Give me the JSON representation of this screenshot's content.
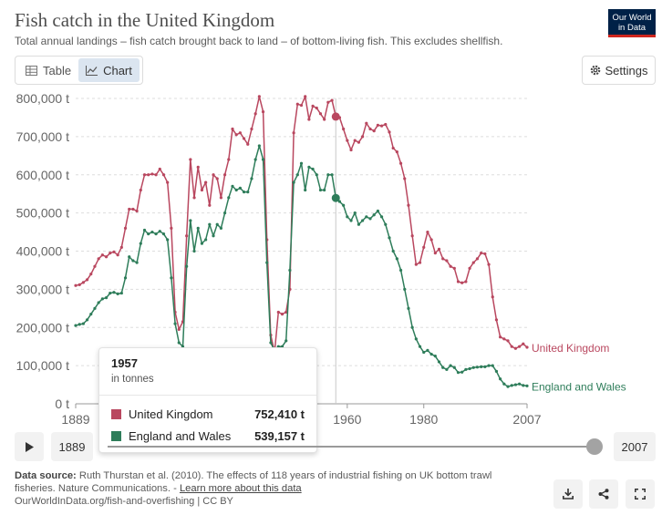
{
  "header": {
    "title": "Fish catch in the United Kingdom",
    "subtitle": "Total annual landings – fish catch brought back to land – of bottom-living fish. This excludes shellfish.",
    "logo_line1": "Our World",
    "logo_line2": "in Data"
  },
  "tabs": [
    {
      "label": "Table",
      "icon": "table-icon",
      "active": false
    },
    {
      "label": "Chart",
      "icon": "line-chart-icon",
      "active": true
    }
  ],
  "settings_label": "Settings",
  "chart_data": {
    "type": "line",
    "title": "Fish catch in the United Kingdom",
    "unit": "t",
    "x_range": [
      1889,
      2007
    ],
    "ylim": [
      0,
      800000
    ],
    "y_ticks": [
      0,
      100000,
      200000,
      300000,
      400000,
      500000,
      600000,
      700000,
      800000
    ],
    "y_tick_labels": [
      "0 t",
      "100,000 t",
      "200,000 t",
      "300,000 t",
      "400,000 t",
      "500,000 t",
      "600,000 t",
      "700,000 t",
      "800,000 t"
    ],
    "x_ticks": [
      1889,
      1960,
      1980,
      2007
    ],
    "x_tick_labels": [
      "1889",
      "1960",
      "1980",
      "2007"
    ],
    "grid": "horizontal dashed",
    "highlight_year": 1957,
    "series": [
      {
        "name": "United Kingdom",
        "color": "#b9475f",
        "x": [
          1889,
          1890,
          1891,
          1892,
          1893,
          1894,
          1895,
          1896,
          1897,
          1898,
          1899,
          1900,
          1901,
          1902,
          1903,
          1904,
          1905,
          1906,
          1907,
          1908,
          1909,
          1910,
          1911,
          1912,
          1913,
          1914,
          1915,
          1916,
          1917,
          1918,
          1919,
          1920,
          1921,
          1922,
          1923,
          1924,
          1925,
          1926,
          1927,
          1928,
          1929,
          1930,
          1931,
          1932,
          1933,
          1934,
          1935,
          1936,
          1937,
          1938,
          1939,
          1940,
          1941,
          1942,
          1943,
          1944,
          1945,
          1946,
          1947,
          1948,
          1949,
          1950,
          1951,
          1952,
          1953,
          1954,
          1955,
          1956,
          1957,
          1958,
          1959,
          1960,
          1961,
          1962,
          1963,
          1964,
          1965,
          1966,
          1967,
          1968,
          1969,
          1970,
          1971,
          1972,
          1973,
          1974,
          1975,
          1976,
          1977,
          1978,
          1979,
          1980,
          1981,
          1982,
          1983,
          1984,
          1985,
          1986,
          1987,
          1988,
          1989,
          1990,
          1991,
          1992,
          1993,
          1994,
          1995,
          1996,
          1997,
          1998,
          1999,
          2000,
          2001,
          2002,
          2003,
          2004,
          2005,
          2006,
          2007
        ],
        "values": [
          310000,
          312000,
          318000,
          325000,
          340000,
          360000,
          380000,
          390000,
          385000,
          395000,
          398000,
          390000,
          410000,
          460000,
          510000,
          510000,
          505000,
          560000,
          600000,
          600000,
          602000,
          600000,
          615000,
          600000,
          580000,
          460000,
          240000,
          195000,
          215000,
          440000,
          640000,
          540000,
          620000,
          560000,
          580000,
          520000,
          600000,
          590000,
          540000,
          600000,
          640000,
          720000,
          705000,
          710000,
          695000,
          680000,
          720000,
          760000,
          805000,
          765000,
          430000,
          180000,
          135000,
          240000,
          235000,
          240000,
          300000,
          710000,
          785000,
          782000,
          805000,
          745000,
          780000,
          775000,
          760000,
          745000,
          790000,
          795000,
          752410,
          750000,
          720000,
          690000,
          665000,
          690000,
          685000,
          700000,
          735000,
          720000,
          715000,
          730000,
          728000,
          732000,
          712000,
          670000,
          660000,
          630000,
          590000,
          520000,
          440000,
          365000,
          370000,
          410000,
          450000,
          430000,
          395000,
          405000,
          380000,
          375000,
          360000,
          355000,
          320000,
          317000,
          320000,
          355000,
          370000,
          380000,
          395000,
          393000,
          365000,
          280000,
          220000,
          175000,
          170000,
          165000,
          150000,
          145000,
          150000,
          157000,
          148000
        ]
      },
      {
        "name": "England and Wales",
        "color": "#2e7d5a",
        "x": [
          1889,
          1890,
          1891,
          1892,
          1893,
          1894,
          1895,
          1896,
          1897,
          1898,
          1899,
          1900,
          1901,
          1902,
          1903,
          1904,
          1905,
          1906,
          1907,
          1908,
          1909,
          1910,
          1911,
          1912,
          1913,
          1914,
          1915,
          1916,
          1917,
          1918,
          1919,
          1920,
          1921,
          1922,
          1923,
          1924,
          1925,
          1926,
          1927,
          1928,
          1929,
          1930,
          1931,
          1932,
          1933,
          1934,
          1935,
          1936,
          1937,
          1938,
          1939,
          1940,
          1941,
          1942,
          1943,
          1944,
          1945,
          1946,
          1947,
          1948,
          1949,
          1950,
          1951,
          1952,
          1953,
          1954,
          1955,
          1956,
          1957,
          1958,
          1959,
          1960,
          1961,
          1962,
          1963,
          1964,
          1965,
          1966,
          1967,
          1968,
          1969,
          1970,
          1971,
          1972,
          1973,
          1974,
          1975,
          1976,
          1977,
          1978,
          1979,
          1980,
          1981,
          1982,
          1983,
          1984,
          1985,
          1986,
          1987,
          1988,
          1989,
          1990,
          1991,
          1992,
          1993,
          1994,
          1995,
          1996,
          1997,
          1998,
          1999,
          2000,
          2001,
          2002,
          2003,
          2004,
          2005,
          2006,
          2007
        ],
        "values": [
          205000,
          208000,
          210000,
          220000,
          235000,
          250000,
          265000,
          275000,
          278000,
          290000,
          292000,
          288000,
          290000,
          330000,
          385000,
          375000,
          370000,
          420000,
          455000,
          445000,
          450000,
          445000,
          452000,
          445000,
          430000,
          330000,
          210000,
          160000,
          150000,
          360000,
          480000,
          400000,
          460000,
          420000,
          430000,
          470000,
          440000,
          470000,
          460000,
          500000,
          540000,
          570000,
          560000,
          565000,
          555000,
          555000,
          590000,
          640000,
          676000,
          640000,
          370000,
          160000,
          140000,
          150000,
          150000,
          165000,
          350000,
          580000,
          600000,
          630000,
          560000,
          620000,
          615000,
          600000,
          560000,
          560000,
          600000,
          600000,
          539157,
          530000,
          520000,
          490000,
          480000,
          500000,
          470000,
          480000,
          490000,
          485000,
          495000,
          505000,
          490000,
          470000,
          435000,
          400000,
          380000,
          350000,
          300000,
          250000,
          200000,
          170000,
          150000,
          135000,
          140000,
          130000,
          125000,
          110000,
          95000,
          90000,
          100000,
          95000,
          82000,
          83000,
          90000,
          92000,
          95000,
          96000,
          97000,
          97000,
          100000,
          100000,
          85000,
          65000,
          52000,
          45000,
          48000,
          50000,
          52000,
          48000,
          47000
        ]
      }
    ],
    "end_labels": [
      "United Kingdom",
      "England and Wales"
    ]
  },
  "tooltip": {
    "year": "1957",
    "unit_note": "in tonnes",
    "rows": [
      {
        "name": "United Kingdom",
        "value": "752,410 t",
        "color": "#b9475f"
      },
      {
        "name": "England and Wales",
        "value": "539,157 t",
        "color": "#2e7d5a"
      }
    ]
  },
  "timeline": {
    "start_label": "1889",
    "end_label": "2007",
    "position": 1.0
  },
  "footer": {
    "source_label": "Data source:",
    "source_text": "Ruth Thurstan et al. (2010). The effects of 118 years of industrial fishing on UK bottom trawl fisheries. Nature Communications. -",
    "learn_more": "Learn more about this data",
    "url": "OurWorldInData.org/fish-and-overfishing | CC BY"
  },
  "actions": [
    {
      "name": "download-icon"
    },
    {
      "name": "share-icon"
    },
    {
      "name": "fullscreen-icon"
    }
  ]
}
